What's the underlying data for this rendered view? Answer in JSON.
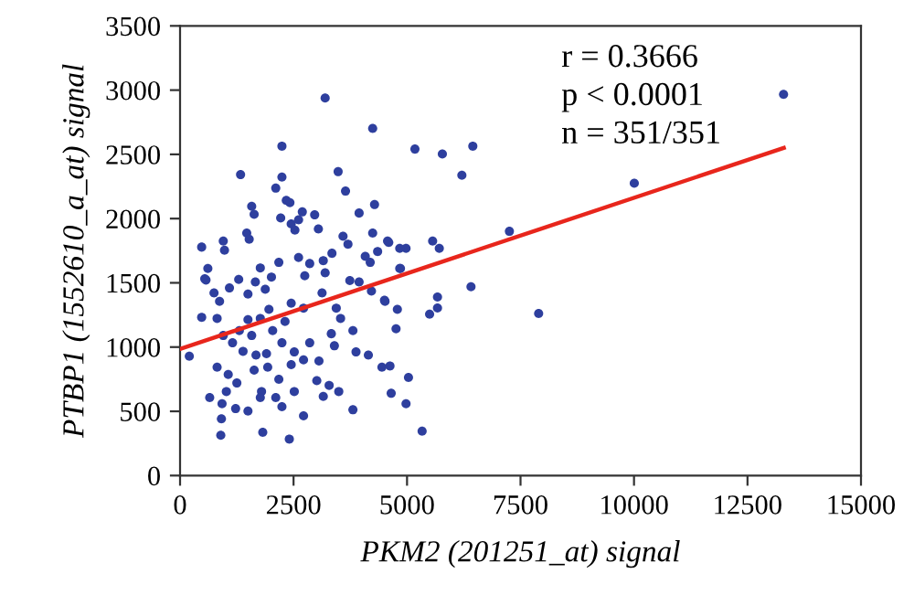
{
  "chart_data": {
    "type": "scatter",
    "xlabel": "PKM2 (201251_at) signal",
    "ylabel": "PTBP1 (1552610_a_at) signal",
    "xlim": [
      0,
      15000
    ],
    "xticks": [
      0,
      2500,
      5000,
      7500,
      10000,
      12500,
      15000
    ],
    "ylim": [
      0,
      3500
    ],
    "yticks": [
      0,
      500,
      1000,
      1500,
      2000,
      2500,
      3000,
      3500
    ],
    "grid": false,
    "legend": false,
    "annotations": [
      "r = 0.3666",
      "p < 0.0001",
      "n = 351/351"
    ],
    "series": [
      {
        "color": "#2e3f9e",
        "marker": "circle",
        "x": [
          204,
          476,
          544,
          3196,
          4243,
          2244,
          1333,
          3482,
          2244,
          2108,
          3645,
          2340,
          2420,
          1578,
          1632,
          3944,
          4284,
          2217,
          2693,
          2611,
          2965,
          3047,
          2448,
          2530,
          1469,
          1523,
          952,
          979,
          612,
          571,
          3590,
          3699,
          3346,
          4243,
          4597,
          4978,
          4352,
          4080,
          4189,
          4855,
          3155,
          3196,
          2611,
          2856,
          2747,
          2176,
          2013,
          1768,
          1659,
          1088,
          1292,
          1496,
          1877,
          748,
          870,
          476,
          3740,
          3944,
          4216,
          4515,
          4787,
          3441,
          3536,
          3128,
          2448,
          2720,
          2312,
          1958,
          1768,
          2040,
          1496,
          1306,
          1578,
          816,
          952,
          1156,
          1387,
          1673,
          1904,
          2244,
          2516,
          2856,
          3332,
          3400,
          3060,
          3808,
          3876,
          4148,
          816,
          1061,
          1251,
          1020,
          1632,
          1931,
          2176,
          2448,
          2720,
          1795,
          2108,
          2516,
          3012,
          3284,
          653,
          925,
          1224,
          1496,
          1768,
          911,
          897,
          1822,
          2407,
          2244,
          2720,
          3155,
          3496,
          3808,
          4447,
          4624,
          4651,
          5032,
          4978,
          5332,
          5174,
          5778,
          6449,
          6208,
          5564,
          5711,
          7255,
          10006,
          13294,
          6409,
          5671,
          5671,
          5497,
          7899,
          4758,
          4503,
          4839,
          4839,
          4571
        ],
        "values": [
          929,
          1778,
          1531,
          2939,
          2702,
          2564,
          2342,
          2365,
          2323,
          2237,
          2214,
          2142,
          2124,
          2095,
          2033,
          2043,
          2109,
          2005,
          2052,
          1991,
          2029,
          1920,
          1958,
          1910,
          1887,
          1839,
          1825,
          1754,
          1612,
          1522,
          1863,
          1801,
          1730,
          1887,
          1815,
          1768,
          1744,
          1706,
          1659,
          1612,
          1673,
          1578,
          1697,
          1650,
          1555,
          1659,
          1545,
          1616,
          1507,
          1460,
          1526,
          1413,
          1450,
          1422,
          1356,
          1232,
          1517,
          1507,
          1436,
          1356,
          1294,
          1303,
          1223,
          1422,
          1341,
          1303,
          1199,
          1294,
          1223,
          1128,
          1213,
          1128,
          1090,
          1223,
          1090,
          1033,
          967,
          938,
          948,
          1033,
          962,
          1033,
          1104,
          1010,
          891,
          1128,
          962,
          938,
          844,
          787,
          720,
          654,
          820,
          844,
          749,
          863,
          901,
          654,
          607,
          654,
          739,
          702,
          607,
          559,
          521,
          502,
          607,
          441,
          313,
          337,
          284,
          536,
          465,
          616,
          654,
          512,
          844,
          853,
          640,
          763,
          559,
          346,
          2541,
          2503,
          2564,
          2337,
          1825,
          1768,
          1901,
          2275,
          2967,
          1469,
          1389,
          1304,
          1256,
          1261,
          1142,
          1365,
          1768,
          1612,
          1825
        ]
      },
      {
        "type": "line",
        "color": "#e8261c",
        "line_style": "solid",
        "x": [
          0,
          13300
        ],
        "values": [
          985,
          2550
        ]
      }
    ]
  }
}
